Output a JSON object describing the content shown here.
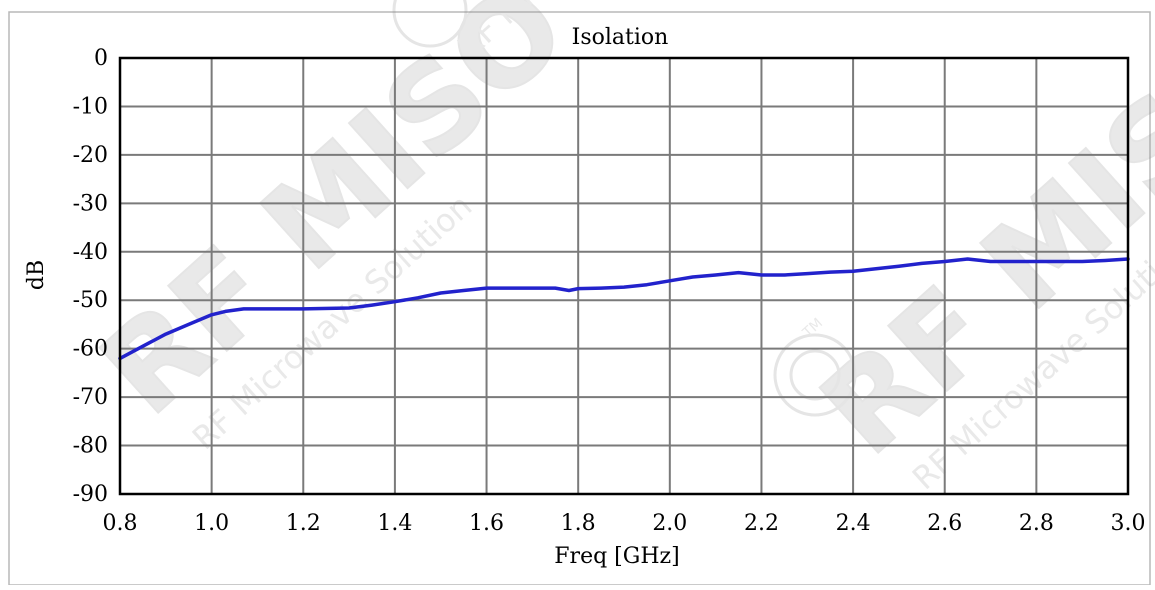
{
  "chart_data": {
    "type": "line",
    "title": "Isolation",
    "xlabel": "Freq [GHz]",
    "ylabel": "dB",
    "xlim": [
      0.8,
      3.0
    ],
    "ylim": [
      -90,
      0
    ],
    "grid": true,
    "x_ticks": [
      0.8,
      1.0,
      1.2,
      1.4,
      1.6,
      1.8,
      2.0,
      2.2,
      2.4,
      2.6,
      2.8,
      3.0
    ],
    "x_tick_labels": [
      "0.8",
      "1.0",
      "1.2",
      "1.4",
      "1.6",
      "1.8",
      "2.0",
      "2.2",
      "2.4",
      "2.6",
      "2.8",
      "3.0"
    ],
    "y_ticks": [
      0,
      -10,
      -20,
      -30,
      -40,
      -50,
      -60,
      -70,
      -80,
      -90
    ],
    "y_tick_labels": [
      "0",
      "-10",
      "-20",
      "-30",
      "-40",
      "-50",
      "-60",
      "-70",
      "-80",
      "-90"
    ],
    "series_color": "#2222cc",
    "series": [
      {
        "x": [
          0.8,
          0.85,
          0.9,
          0.95,
          1.0,
          1.03,
          1.07,
          1.1,
          1.2,
          1.3,
          1.35,
          1.4,
          1.45,
          1.5,
          1.55,
          1.6,
          1.65,
          1.7,
          1.75,
          1.78,
          1.8,
          1.85,
          1.9,
          1.95,
          2.0,
          2.05,
          2.1,
          2.15,
          2.2,
          2.25,
          2.3,
          2.35,
          2.4,
          2.45,
          2.5,
          2.55,
          2.6,
          2.65,
          2.7,
          2.75,
          2.8,
          2.85,
          2.9,
          2.95,
          3.0
        ],
        "y": [
          -62,
          -59.5,
          -57,
          -55,
          -53,
          -52.3,
          -51.8,
          -51.8,
          -51.8,
          -51.6,
          -51,
          -50.3,
          -49.5,
          -48.5,
          -48,
          -47.5,
          -47.5,
          -47.5,
          -47.5,
          -48,
          -47.6,
          -47.5,
          -47.3,
          -46.8,
          -46,
          -45.2,
          -44.8,
          -44.3,
          -44.8,
          -44.8,
          -44.5,
          -44.2,
          -44,
          -43.5,
          -43,
          -42.4,
          -42,
          -41.5,
          -42,
          -42,
          -42,
          -42,
          -42,
          -41.8,
          -41.5
        ]
      }
    ]
  },
  "watermark": {
    "brand": "RF MISO",
    "tagline": "RF Microwave Solution",
    "tm": "TM"
  }
}
